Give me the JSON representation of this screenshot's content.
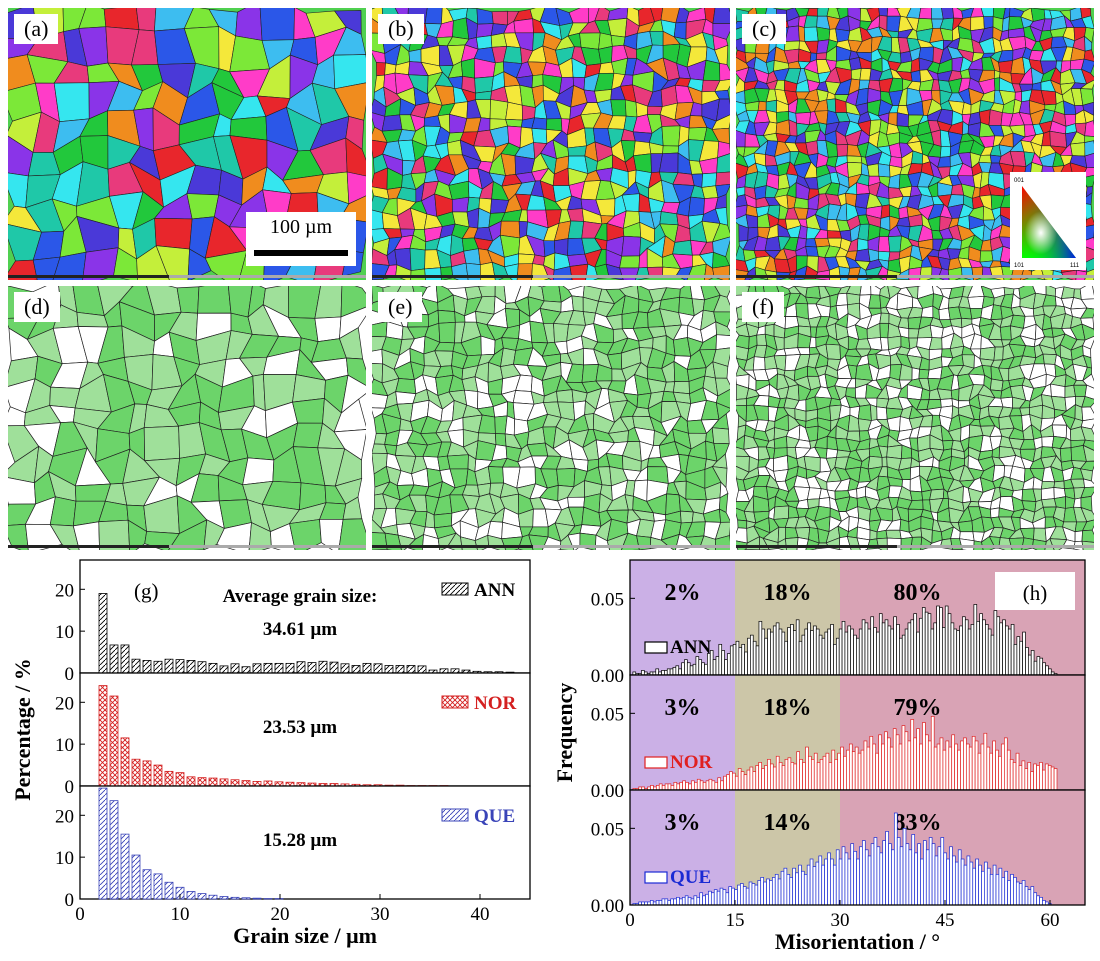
{
  "maps": [
    {
      "label": "(a)",
      "kind": "ipf",
      "grains": 140,
      "scalebar": "100 µm"
    },
    {
      "label": "(b)",
      "kind": "ipf",
      "grains": 520
    },
    {
      "label": "(c)",
      "kind": "ipf",
      "grains": 900,
      "legend": {
        "top": "001",
        "left": "101",
        "right": "111"
      }
    },
    {
      "label": "(d)",
      "kind": "gb",
      "grains": 160
    },
    {
      "label": "(e)",
      "kind": "gb",
      "grains": 520
    },
    {
      "label": "(f)",
      "kind": "gb",
      "grains": 900
    }
  ],
  "ipf_colors": [
    "#e8262c",
    "#2b57e8",
    "#22c83c",
    "#f08c1e",
    "#ff3cc8",
    "#35e6ef",
    "#f4e83a",
    "#8a34e8",
    "#7ce838",
    "#3dbdf0",
    "#e83a7c",
    "#c4ef3a",
    "#1fc8a8",
    "#4a39d8"
  ],
  "chart_data": [
    {
      "type": "bar",
      "panel_label": "(g)",
      "xlabel": "Grain size / μm",
      "ylabel": "Percentage / %",
      "xlim": [
        0,
        45
      ],
      "xticks": [
        "0",
        "10",
        "20",
        "30",
        "40"
      ],
      "yticks": [
        "0",
        "10",
        "20"
      ],
      "ylim": [
        0,
        27
      ],
      "annotation_title": "Average grain size:",
      "x": [
        2.3,
        3.4,
        4.5,
        5.6,
        6.7,
        7.8,
        8.9,
        10.0,
        11.1,
        12.2,
        13.3,
        14.4,
        15.5,
        16.6,
        17.7,
        18.8,
        19.9,
        21.0,
        22.1,
        23.2,
        24.3,
        25.4,
        26.5,
        27.6,
        28.7,
        29.8,
        30.9,
        32.0,
        33.1,
        34.2,
        35.3,
        36.4,
        37.5,
        38.6,
        39.7,
        40.8,
        41.9,
        43.0
      ],
      "series": [
        {
          "name": "ANN",
          "average": "34.61 µm",
          "color": "#000000",
          "hatch": "diag",
          "values": [
            19,
            6.7,
            6.7,
            3.3,
            3,
            2.8,
            3.3,
            3.2,
            3,
            2.7,
            2.3,
            1.7,
            2.2,
            1.5,
            2.2,
            2.3,
            2.3,
            2.3,
            2.7,
            2.5,
            2.8,
            2.6,
            2.2,
            1.8,
            2.3,
            2.2,
            1.8,
            1.8,
            1.8,
            1.7,
            0.7,
            1,
            1,
            0.7,
            0.4,
            0.3,
            0.3,
            0.2
          ]
        },
        {
          "name": "NOR",
          "average": "23.53 µm",
          "color": "#d42020",
          "hatch": "cross",
          "values": [
            24,
            21.5,
            11.5,
            6.4,
            6,
            5,
            3.5,
            3.2,
            2.2,
            2,
            1.9,
            1.7,
            1.5,
            1.3,
            1.1,
            1.2,
            1,
            0.9,
            0.8,
            0.7,
            0.6,
            0.6,
            0.5,
            0.4,
            0.3,
            0.3,
            0.2,
            0.2,
            0.1,
            0.1,
            0.1,
            0.1,
            0,
            0,
            0,
            0,
            0,
            0
          ]
        },
        {
          "name": "QUE",
          "average": "15.28 µm",
          "color": "#3a44b8",
          "hatch": "diag",
          "values": [
            26.5,
            23.5,
            15.5,
            10.5,
            7,
            6,
            4,
            2.8,
            1.8,
            1.3,
            0.9,
            0.6,
            0.4,
            0.3,
            0.2,
            0.1,
            0.1,
            0,
            0,
            0,
            0,
            0,
            0,
            0,
            0,
            0,
            0,
            0,
            0,
            0,
            0,
            0,
            0,
            0,
            0,
            0,
            0,
            0
          ]
        }
      ]
    },
    {
      "type": "bar",
      "panel_label": "(h)",
      "xlabel": "Misorientation / °",
      "ylabel": "Frequency",
      "xlim": [
        0,
        65
      ],
      "ylim": [
        0,
        0.075
      ],
      "xticks": [
        "0",
        "15",
        "30",
        "45",
        "60"
      ],
      "yticks": [
        "0.00",
        "0.05"
      ],
      "region_colors": [
        "#cbb0e6",
        "#ccc6a8",
        "#d9a3b5"
      ],
      "region_bounds": [
        0,
        15,
        30,
        65
      ],
      "series": [
        {
          "name": "ANN",
          "color": "#000000",
          "regions": [
            "2%",
            "18%",
            "80%"
          ],
          "values": [
            0,
            0.002,
            0.001,
            0.001,
            0.003,
            0.002,
            0.001,
            0.002,
            0.002,
            0.004,
            0.002,
            0.003,
            0.003,
            0.004,
            0.004,
            0.005,
            0.006,
            0.004,
            0.008,
            0.01,
            0.008,
            0.006,
            0.007,
            0.012,
            0.01,
            0.008,
            0.007,
            0.014,
            0.016,
            0.01,
            0.012,
            0.02,
            0.016,
            0.01,
            0.014,
            0.019,
            0.02,
            0.022,
            0.018,
            0.02,
            0.015,
            0.024,
            0.026,
            0.022,
            0.019,
            0.035,
            0.03,
            0.024,
            0.03,
            0.028,
            0.032,
            0.034,
            0.03,
            0.028,
            0.022,
            0.031,
            0.033,
            0.029,
            0.036,
            0.022,
            0.026,
            0.03,
            0.034,
            0.029,
            0.032,
            0.03,
            0.026,
            0.024,
            0.028,
            0.03,
            0.033,
            0.02,
            0.024,
            0.03,
            0.035,
            0.028,
            0.032,
            0.03,
            0.026,
            0.024,
            0.03,
            0.036,
            0.034,
            0.03,
            0.038,
            0.031,
            0.028,
            0.04,
            0.034,
            0.036,
            0.032,
            0.03,
            0.038,
            0.033,
            0.024,
            0.026,
            0.03,
            0.034,
            0.036,
            0.04,
            0.028,
            0.037,
            0.044,
            0.041,
            0.04,
            0.03,
            0.034,
            0.045,
            0.044,
            0.031,
            0.045,
            0.04,
            0.034,
            0.03,
            0.029,
            0.032,
            0.038,
            0.036,
            0.03,
            0.033,
            0.046,
            0.035,
            0.04,
            0.036,
            0.033,
            0.03,
            0.026,
            0.042,
            0.038,
            0.034,
            0.036,
            0.032,
            0.03,
            0.033,
            0.02,
            0.025,
            0.022,
            0.028,
            0.018,
            0.013,
            0.016,
            0.009,
            0.012,
            0.011,
            0.008,
            0.006,
            0.004,
            0.002,
            0.001
          ]
        },
        {
          "name": "NOR",
          "color": "#e02020",
          "regions": [
            "3%",
            "18%",
            "79%"
          ],
          "values": [
            0,
            0.001,
            0.001,
            0.002,
            0.002,
            0.001,
            0.002,
            0.003,
            0.002,
            0.003,
            0.004,
            0.003,
            0.004,
            0.004,
            0.003,
            0.005,
            0.004,
            0.005,
            0.006,
            0.005,
            0.004,
            0.006,
            0.005,
            0.007,
            0.006,
            0.005,
            0.006,
            0.007,
            0.006,
            0.005,
            0.008,
            0.006,
            0.009,
            0.01,
            0.012,
            0.011,
            0.009,
            0.014,
            0.012,
            0.01,
            0.013,
            0.015,
            0.012,
            0.016,
            0.018,
            0.014,
            0.016,
            0.02,
            0.017,
            0.015,
            0.022,
            0.018,
            0.016,
            0.02,
            0.021,
            0.018,
            0.017,
            0.025,
            0.02,
            0.018,
            0.028,
            0.022,
            0.02,
            0.024,
            0.018,
            0.02,
            0.022,
            0.024,
            0.018,
            0.026,
            0.02,
            0.024,
            0.028,
            0.022,
            0.026,
            0.03,
            0.025,
            0.028,
            0.024,
            0.026,
            0.032,
            0.028,
            0.035,
            0.03,
            0.024,
            0.036,
            0.03,
            0.038,
            0.034,
            0.028,
            0.04,
            0.036,
            0.03,
            0.042,
            0.038,
            0.032,
            0.046,
            0.034,
            0.04,
            0.03,
            0.044,
            0.036,
            0.032,
            0.048,
            0.028,
            0.03,
            0.034,
            0.026,
            0.032,
            0.028,
            0.036,
            0.03,
            0.026,
            0.032,
            0.034,
            0.03,
            0.028,
            0.035,
            0.032,
            0.024,
            0.03,
            0.037,
            0.028,
            0.024,
            0.032,
            0.026,
            0.022,
            0.03,
            0.034,
            0.026,
            0.02,
            0.018,
            0.024,
            0.016,
            0.019,
            0.014,
            0.018,
            0.012,
            0.017,
            0.016,
            0.018,
            0.013,
            0.017,
            0.016,
            0.015,
            0.014
          ]
        },
        {
          "name": "QUE",
          "color": "#1a2ad4",
          "regions": [
            "3%",
            "14%",
            "83%"
          ],
          "values": [
            0,
            0.001,
            0.001,
            0.002,
            0.002,
            0.002,
            0.002,
            0.003,
            0.002,
            0.003,
            0.003,
            0.004,
            0.004,
            0.003,
            0.004,
            0.004,
            0.005,
            0.004,
            0.005,
            0.006,
            0.005,
            0.004,
            0.006,
            0.005,
            0.008,
            0.006,
            0.007,
            0.009,
            0.008,
            0.01,
            0.009,
            0.011,
            0.01,
            0.008,
            0.012,
            0.011,
            0.01,
            0.013,
            0.014,
            0.012,
            0.011,
            0.015,
            0.014,
            0.013,
            0.016,
            0.018,
            0.015,
            0.017,
            0.016,
            0.018,
            0.02,
            0.017,
            0.022,
            0.024,
            0.02,
            0.018,
            0.024,
            0.021,
            0.026,
            0.022,
            0.02,
            0.026,
            0.03,
            0.025,
            0.028,
            0.032,
            0.026,
            0.03,
            0.034,
            0.03,
            0.026,
            0.036,
            0.03,
            0.038,
            0.034,
            0.03,
            0.04,
            0.035,
            0.03,
            0.038,
            0.042,
            0.036,
            0.032,
            0.04,
            0.044,
            0.038,
            0.034,
            0.042,
            0.048,
            0.04,
            0.036,
            0.06,
            0.044,
            0.038,
            0.05,
            0.04,
            0.036,
            0.046,
            0.034,
            0.04,
            0.03,
            0.042,
            0.036,
            0.044,
            0.04,
            0.032,
            0.038,
            0.044,
            0.034,
            0.03,
            0.038,
            0.032,
            0.028,
            0.036,
            0.03,
            0.026,
            0.032,
            0.028,
            0.024,
            0.03,
            0.026,
            0.022,
            0.028,
            0.024,
            0.02,
            0.026,
            0.02,
            0.024,
            0.018,
            0.022,
            0.016,
            0.02,
            0.018,
            0.015,
            0.014,
            0.016,
            0.012,
            0.01,
            0.012,
            0.008,
            0.006,
            0.005,
            0.003,
            0.002,
            0.001,
            0,
            0
          ]
        }
      ]
    }
  ]
}
